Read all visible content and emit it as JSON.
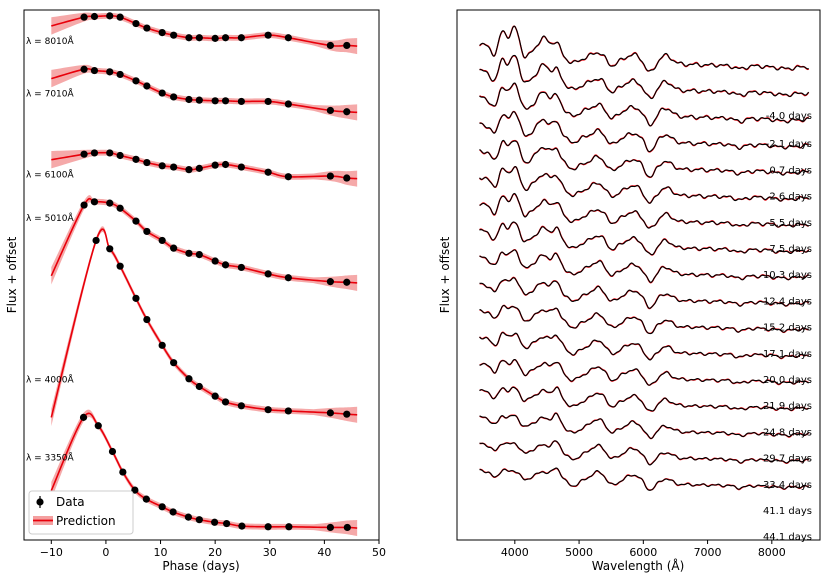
{
  "colors": {
    "prediction": "#e8000b",
    "band": "#f4a0a0",
    "data": "#000000",
    "spectrum": "#000000"
  },
  "left": {
    "chart_data": {
      "type": "line",
      "title": "",
      "xlabel": "Phase (days)",
      "ylabel": "Flux + offset",
      "xlim": [
        -15,
        50
      ],
      "xticks": [
        "−10",
        "0",
        "10",
        "20",
        "30",
        "40",
        "50"
      ],
      "xtick_values": [
        -10,
        0,
        10,
        20,
        30,
        40,
        50
      ],
      "legend": {
        "placement": "lower-left",
        "data_label": "Data",
        "prediction_label": "Prediction"
      },
      "series": [
        {
          "name": "λ = 3350Å",
          "offset": 0.0,
          "x": [
            -4.1,
            -1.4,
            1.2,
            3.1,
            5.3,
            7.4,
            10.3,
            12.3,
            15.1,
            17.1,
            19.9,
            22.1,
            24.9,
            29.7,
            33.5,
            41.1,
            44.2
          ],
          "y": [
            1.75,
            1.62,
            1.22,
            0.9,
            0.62,
            0.48,
            0.36,
            0.28,
            0.2,
            0.16,
            0.12,
            0.1,
            0.06,
            0.05,
            0.05,
            0.04,
            0.04
          ]
        },
        {
          "name": "λ = 4000Å",
          "offset": 1.75,
          "x": [
            -1.8,
            0.7,
            2.6,
            5.5,
            7.5,
            10.3,
            12.4,
            15.2,
            17.1,
            20.0,
            21.9,
            24.8,
            29.7,
            33.4,
            41.1,
            44.1
          ],
          "y": [
            2.75,
            2.62,
            2.35,
            1.85,
            1.52,
            1.12,
            0.85,
            0.6,
            0.48,
            0.33,
            0.24,
            0.18,
            0.12,
            0.1,
            0.07,
            0.05
          ]
        },
        {
          "name": "λ = 5010Å",
          "offset": 3.8,
          "x": [
            -4.0,
            -2.1,
            0.7,
            2.6,
            5.5,
            7.5,
            10.3,
            12.4,
            15.2,
            17.1,
            20.0,
            21.9,
            24.8,
            29.7,
            33.4,
            41.1,
            44.1
          ],
          "y": [
            1.25,
            1.3,
            1.28,
            1.2,
            1.0,
            0.84,
            0.7,
            0.58,
            0.5,
            0.48,
            0.38,
            0.32,
            0.28,
            0.18,
            0.12,
            0.06,
            0.05
          ]
        },
        {
          "name": "λ = 6100Å",
          "offset": 5.45,
          "x": [
            -4.0,
            -2.1,
            0.7,
            2.6,
            5.5,
            7.5,
            10.3,
            12.4,
            15.2,
            17.1,
            20.0,
            21.9,
            24.8,
            29.7,
            33.4,
            41.1,
            44.1
          ],
          "y": [
            0.39,
            0.41,
            0.41,
            0.37,
            0.31,
            0.26,
            0.21,
            0.19,
            0.15,
            0.17,
            0.22,
            0.23,
            0.19,
            0.11,
            0.04,
            0.05,
            0.02
          ]
        },
        {
          "name": "λ = 7010Å",
          "offset": 6.5,
          "x": [
            -4.0,
            -2.1,
            0.7,
            2.6,
            5.5,
            7.5,
            10.3,
            12.4,
            15.2,
            17.1,
            20.0,
            21.9,
            24.8,
            29.7,
            33.4,
            41.1,
            44.1
          ],
          "y": [
            0.66,
            0.64,
            0.62,
            0.58,
            0.48,
            0.4,
            0.29,
            0.23,
            0.19,
            0.18,
            0.17,
            0.17,
            0.16,
            0.16,
            0.12,
            0.02,
            0.0
          ]
        },
        {
          "name": "λ = 8010Å",
          "offset": 7.35,
          "x": [
            -4.0,
            -2.1,
            0.7,
            2.6,
            5.5,
            7.5,
            10.3,
            12.4,
            15.2,
            17.1,
            20.0,
            21.9,
            24.8,
            29.7,
            33.4,
            41.1,
            44.1
          ],
          "y": [
            0.62,
            0.63,
            0.64,
            0.62,
            0.52,
            0.45,
            0.38,
            0.34,
            0.3,
            0.3,
            0.29,
            0.3,
            0.3,
            0.34,
            0.3,
            0.18,
            0.18
          ]
        }
      ]
    }
  },
  "right": {
    "chart_data": {
      "type": "line",
      "title": "",
      "xlabel": "Wavelength (Å)",
      "ylabel": "Flux + offset",
      "xlim": [
        3100,
        8750
      ],
      "xticks": [
        "4000",
        "5000",
        "6000",
        "7000",
        "8000"
      ],
      "xtick_values": [
        4000,
        5000,
        6000,
        7000,
        8000
      ],
      "series_colors": {
        "data": "#000000",
        "prediction": "#e8000b"
      },
      "epochs": [
        "-4.0 days",
        "-2.1 days",
        "0.7 days",
        "2.6 days",
        "5.5 days",
        "7.5 days",
        "10.3 days",
        "12.4 days",
        "15.2 days",
        "17.1 days",
        "20.0 days",
        "21.9 days",
        "24.8 days",
        "29.7 days",
        "33.4 days",
        "41.1 days",
        "44.1 days"
      ]
    }
  }
}
